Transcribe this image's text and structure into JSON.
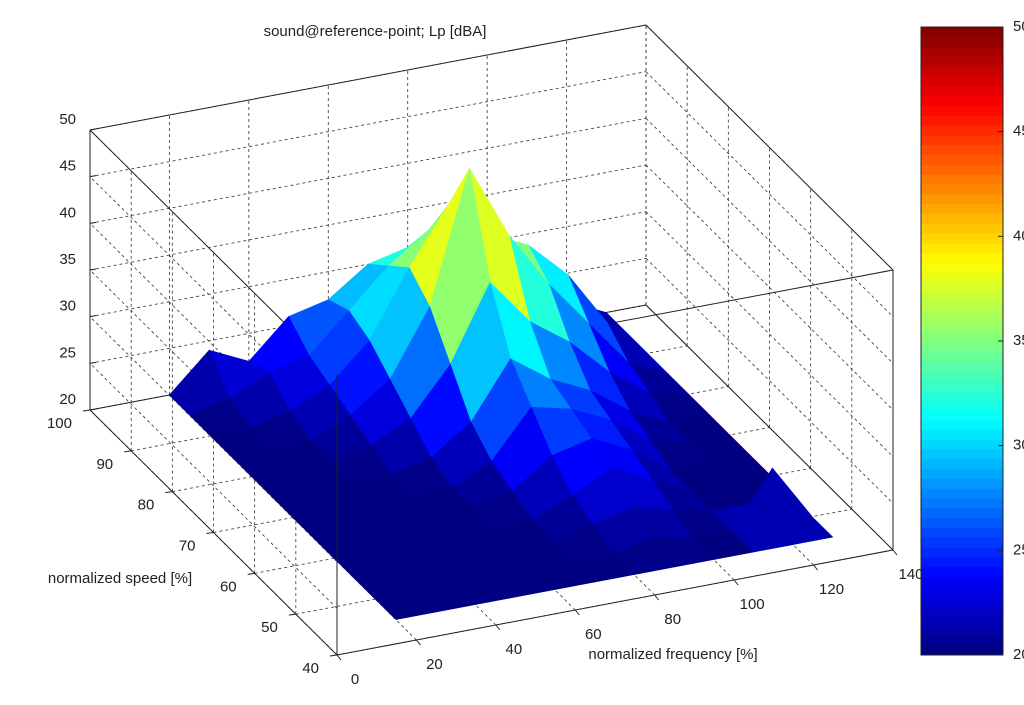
{
  "chart_data": {
    "type": "surface",
    "title": "sound@reference-point; Lp [dBA]",
    "xlabel": "normalized frequency [%]",
    "ylabel": "normalized speed [%]",
    "x": [
      20,
      30,
      40,
      50,
      60,
      70,
      80,
      90,
      100,
      110,
      120,
      130
    ],
    "y": [
      45,
      50,
      55,
      60,
      65,
      70,
      75,
      80,
      85,
      90,
      95,
      100
    ],
    "z": [
      [
        20,
        20,
        20,
        20,
        20,
        20,
        20,
        20,
        20,
        20,
        20,
        20
      ],
      [
        20,
        20,
        20,
        20,
        20,
        20,
        20,
        21,
        20,
        20,
        26,
        20
      ],
      [
        20,
        20,
        20,
        20,
        20,
        20,
        21,
        22,
        21,
        20,
        20,
        20
      ],
      [
        20,
        20,
        20,
        20,
        20,
        20,
        22,
        24,
        22,
        20,
        20,
        20
      ],
      [
        20,
        20,
        20,
        20,
        20,
        21,
        24,
        25,
        23,
        20,
        20,
        20
      ],
      [
        20,
        20,
        20,
        20,
        20,
        22,
        27,
        26,
        24,
        21,
        20,
        20
      ],
      [
        20,
        20,
        20,
        20,
        21,
        24,
        30,
        27,
        25,
        22,
        20,
        20
      ],
      [
        20,
        20,
        20,
        21,
        23,
        28,
        36,
        31,
        28,
        24,
        21,
        20
      ],
      [
        20,
        20,
        20,
        22,
        25,
        32,
        46,
        38,
        32,
        27,
        22,
        20
      ],
      [
        20,
        20,
        21,
        23,
        27,
        34,
        40,
        36,
        34,
        30,
        24,
        20
      ],
      [
        20,
        21,
        23,
        24,
        28,
        32,
        35,
        33,
        30,
        28,
        23,
        20
      ],
      [
        20,
        24,
        22,
        26,
        27,
        30,
        31,
        30,
        28,
        26,
        22,
        20
      ]
    ],
    "xlim": [
      0,
      140
    ],
    "xticks": [
      0,
      20,
      40,
      60,
      80,
      100,
      120,
      140
    ],
    "ylim": [
      40,
      100
    ],
    "yticks": [
      40,
      50,
      60,
      70,
      80,
      90,
      100
    ],
    "zlim": [
      20,
      50
    ],
    "zticks": [
      20,
      25,
      30,
      35,
      40,
      45,
      50
    ],
    "colormap": "jet",
    "grid": true,
    "colorbar": {
      "clim": [
        20,
        50
      ],
      "ticks": [
        20,
        25,
        30,
        35,
        40,
        45,
        50
      ]
    }
  }
}
